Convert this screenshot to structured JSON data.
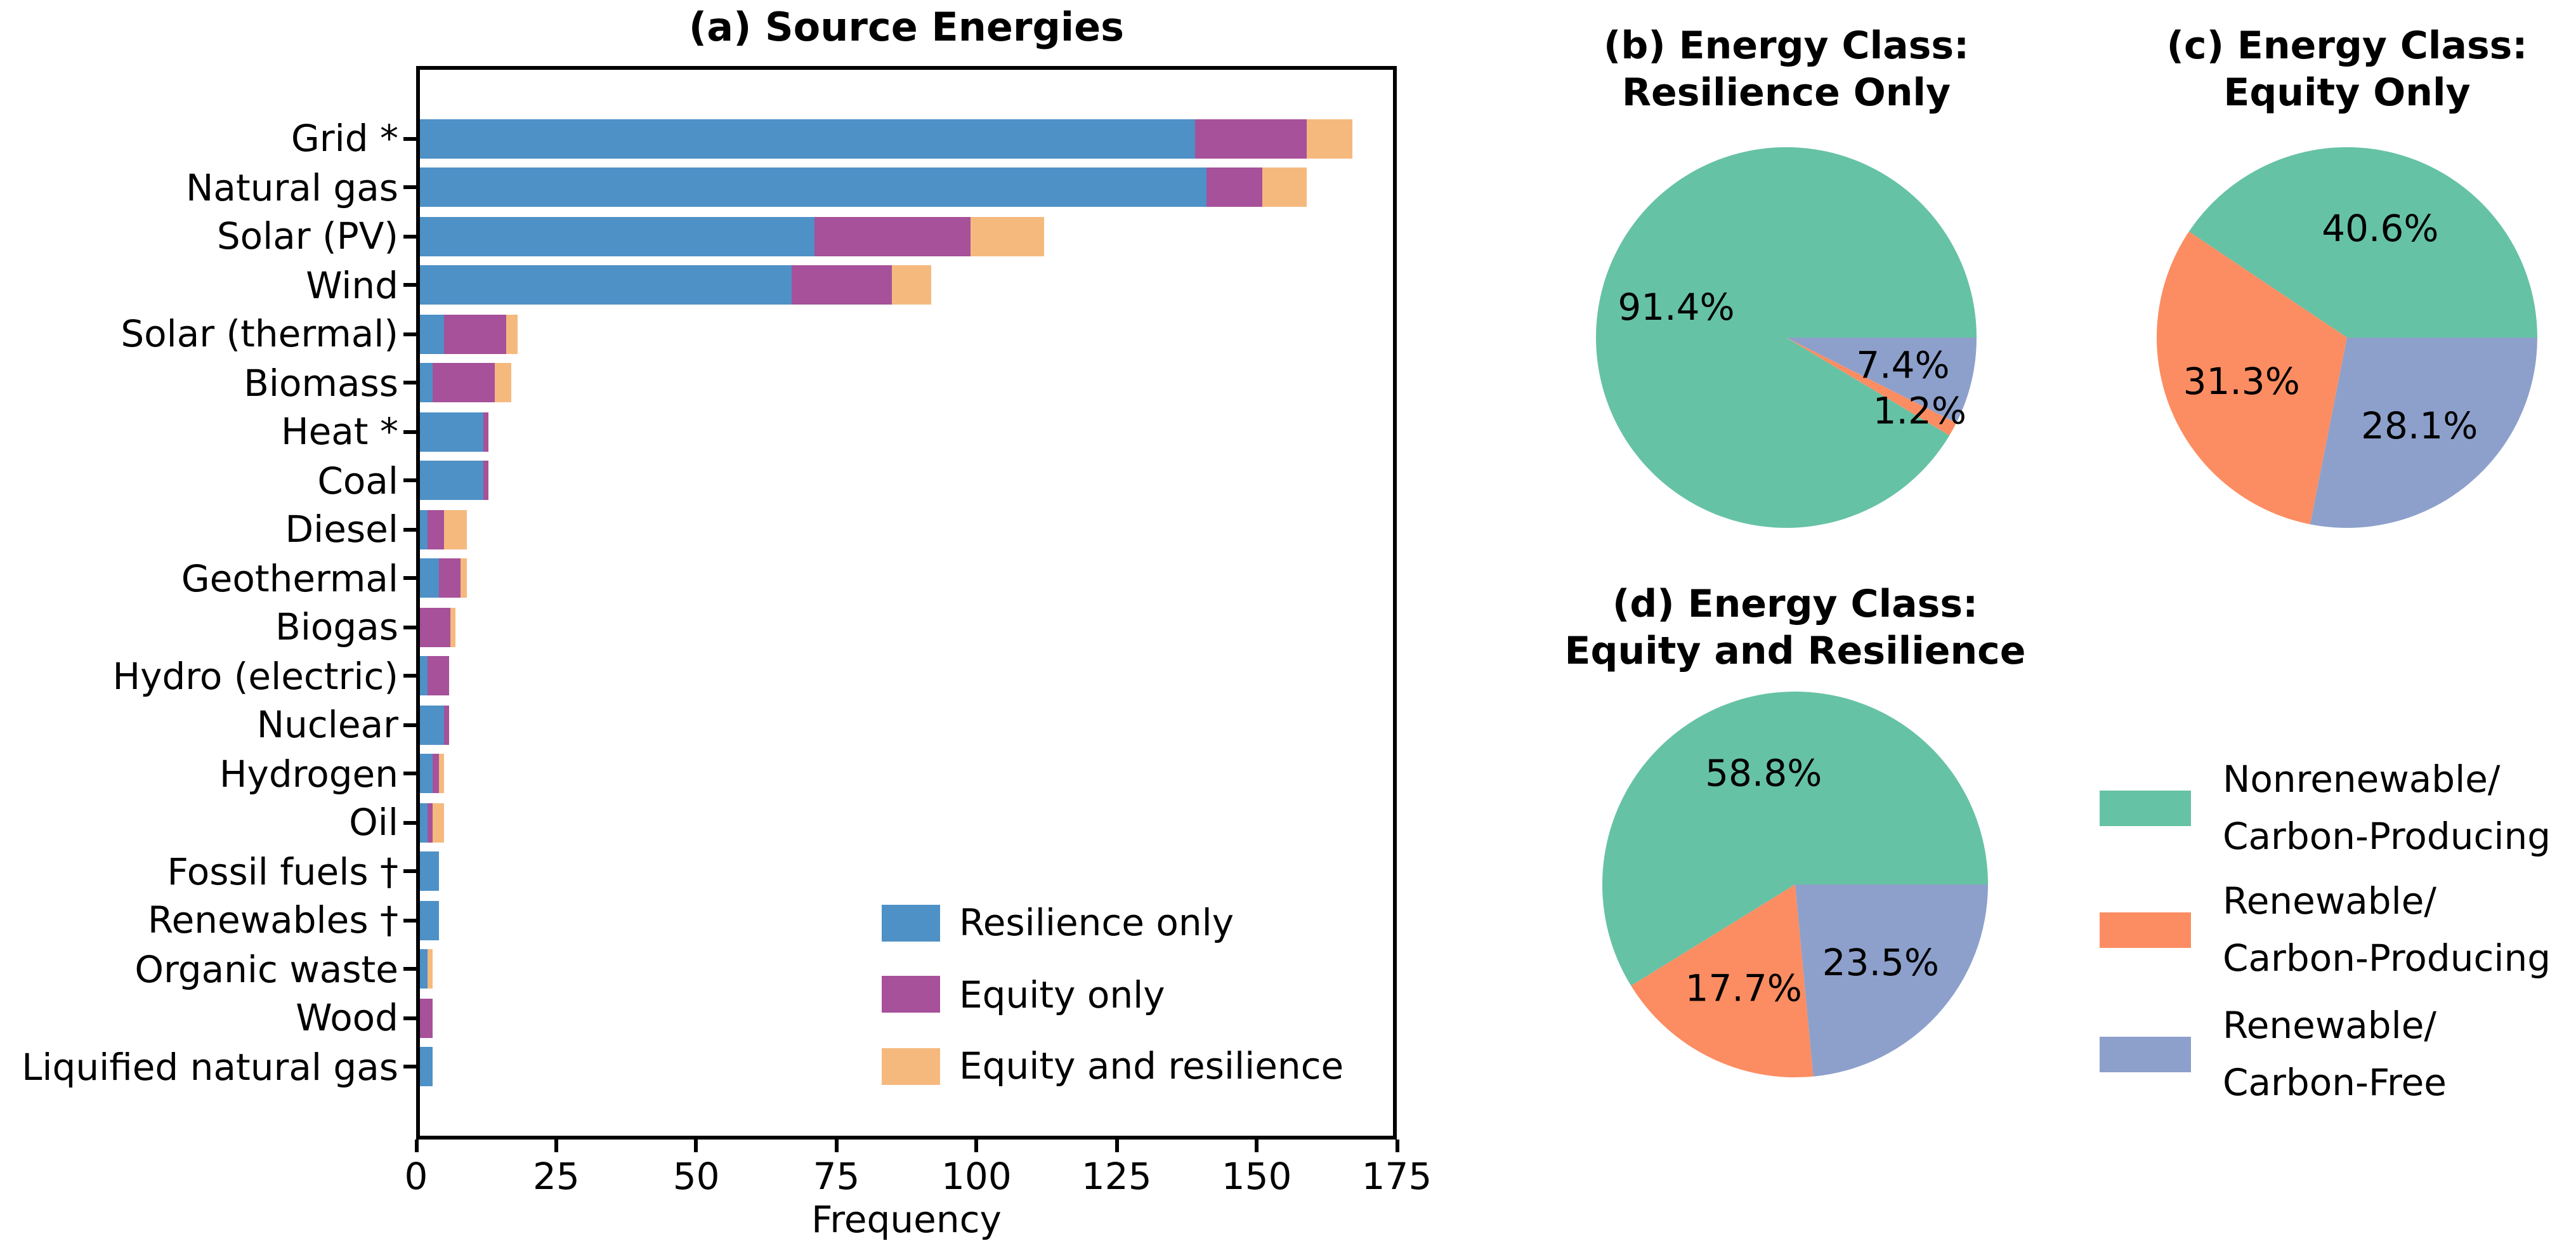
{
  "figure": {
    "background": "#ffffff",
    "text_color": "#000000"
  },
  "chart_data": [
    {
      "id": "a",
      "type": "bar",
      "orientation": "horizontal",
      "stacked": true,
      "grid": false,
      "title": "(a) Source Energies",
      "xlabel": "Frequency",
      "xlim": [
        0,
        175
      ],
      "xticks": [
        0,
        25,
        50,
        75,
        100,
        125,
        150,
        175
      ],
      "legend_position": "lower right",
      "categories": [
        "Grid *",
        "Natural gas",
        "Solar (PV)",
        "Wind",
        "Solar (thermal)",
        "Biomass",
        "Heat *",
        "Coal",
        "Diesel",
        "Geothermal",
        "Biogas",
        "Hydro (electric)",
        "Nuclear",
        "Hydrogen",
        "Oil",
        "Fossil fuels †",
        "Renewables †",
        "Organic waste",
        "Wood",
        "Liquified natural gas"
      ],
      "series": [
        {
          "name": "Resilience only",
          "color": "#4E91C6",
          "values": [
            139,
            141,
            71,
            67,
            5,
            3,
            12,
            12,
            2,
            4,
            0,
            2,
            5,
            3,
            2,
            4,
            4,
            2,
            0,
            3
          ]
        },
        {
          "name": "Equity only",
          "color": "#A6519A",
          "values": [
            20,
            10,
            28,
            18,
            11,
            11,
            1,
            1,
            3,
            4,
            6,
            4,
            1,
            1,
            1,
            0,
            0,
            0,
            3,
            0
          ]
        },
        {
          "name": "Equity and resilience",
          "color": "#F5B97E",
          "values": [
            8,
            8,
            13,
            7,
            2,
            3,
            0,
            0,
            4,
            1,
            1,
            0,
            0,
            1,
            2,
            0,
            0,
            1,
            0,
            0
          ]
        }
      ]
    },
    {
      "id": "b",
      "type": "pie",
      "title_lines": [
        "(b) Energy Class:",
        "Resilience Only"
      ],
      "start_angle": 0,
      "direction": "counterclockwise",
      "slices": [
        {
          "label": "Nonrenewable/Carbon-Producing",
          "value": 91.4,
          "display": "91.4%",
          "color": "#66C2A5",
          "label_radius": 0.6
        },
        {
          "label": "Renewable/Carbon-Producing",
          "value": 1.2,
          "display": "1.2%",
          "color": "#FC8D62",
          "label_radius": 0.8
        },
        {
          "label": "Renewable/Carbon-Free",
          "value": 7.4,
          "display": "7.4%",
          "color": "#8DA0CB",
          "label_radius": 0.63
        }
      ]
    },
    {
      "id": "c",
      "type": "pie",
      "title_lines": [
        "(c) Energy Class:",
        "Equity Only"
      ],
      "start_angle": 0,
      "direction": "counterclockwise",
      "slices": [
        {
          "label": "Nonrenewable/Carbon-Producing",
          "value": 40.6,
          "display": "40.6%",
          "color": "#66C2A5",
          "label_radius": 0.6
        },
        {
          "label": "Renewable/Carbon-Producing",
          "value": 31.3,
          "display": "31.3%",
          "color": "#FC8D62",
          "label_radius": 0.6
        },
        {
          "label": "Renewable/Carbon-Free",
          "value": 28.1,
          "display": "28.1%",
          "color": "#8DA0CB",
          "label_radius": 0.6
        }
      ]
    },
    {
      "id": "d",
      "type": "pie",
      "title_lines": [
        "(d) Energy Class:",
        "Equity and Resilience"
      ],
      "start_angle": 0,
      "direction": "counterclockwise",
      "slices": [
        {
          "label": "Nonrenewable/Carbon-Producing",
          "value": 58.8,
          "display": "58.8%",
          "color": "#66C2A5",
          "label_radius": 0.6
        },
        {
          "label": "Renewable/Carbon-Producing",
          "value": 17.7,
          "display": "17.7%",
          "color": "#FC8D62",
          "label_radius": 0.6
        },
        {
          "label": "Renewable/Carbon-Free",
          "value": 23.5,
          "display": "23.5%",
          "color": "#8DA0CB",
          "label_radius": 0.6
        }
      ]
    }
  ],
  "class_legend": {
    "items": [
      {
        "label_lines": [
          "Nonrenewable/",
          "Carbon-Producing"
        ],
        "color": "#66C2A5"
      },
      {
        "label_lines": [
          "Renewable/",
          "Carbon-Producing"
        ],
        "color": "#FC8D62"
      },
      {
        "label_lines": [
          "Renewable/",
          "Carbon-Free"
        ],
        "color": "#8DA0CB"
      }
    ]
  }
}
